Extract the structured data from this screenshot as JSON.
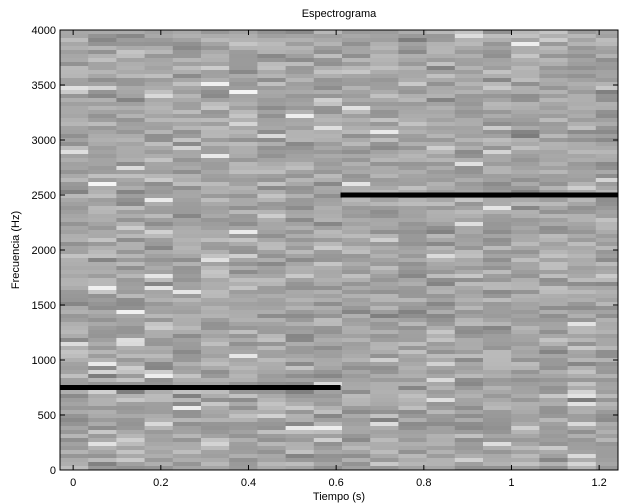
{
  "chart_data": {
    "type": "line",
    "title": "Espectrograma",
    "xlabel": "Tiempo (s)",
    "ylabel": "Frecuencia (Hz)",
    "x": [
      -0.03,
      0.61,
      0.61,
      0.61,
      1.243
    ],
    "values": [
      750,
      750,
      null,
      2500,
      2500
    ],
    "color": "#000000",
    "xlim": [
      -0.03,
      1.243
    ],
    "ylim": [
      0,
      4000
    ],
    "xticks": [
      0,
      0.2,
      0.4,
      0.6,
      0.8,
      1,
      1.2
    ],
    "yticks": [
      0,
      500,
      1000,
      1500,
      2000,
      2500,
      3000,
      3500,
      4000
    ]
  }
}
